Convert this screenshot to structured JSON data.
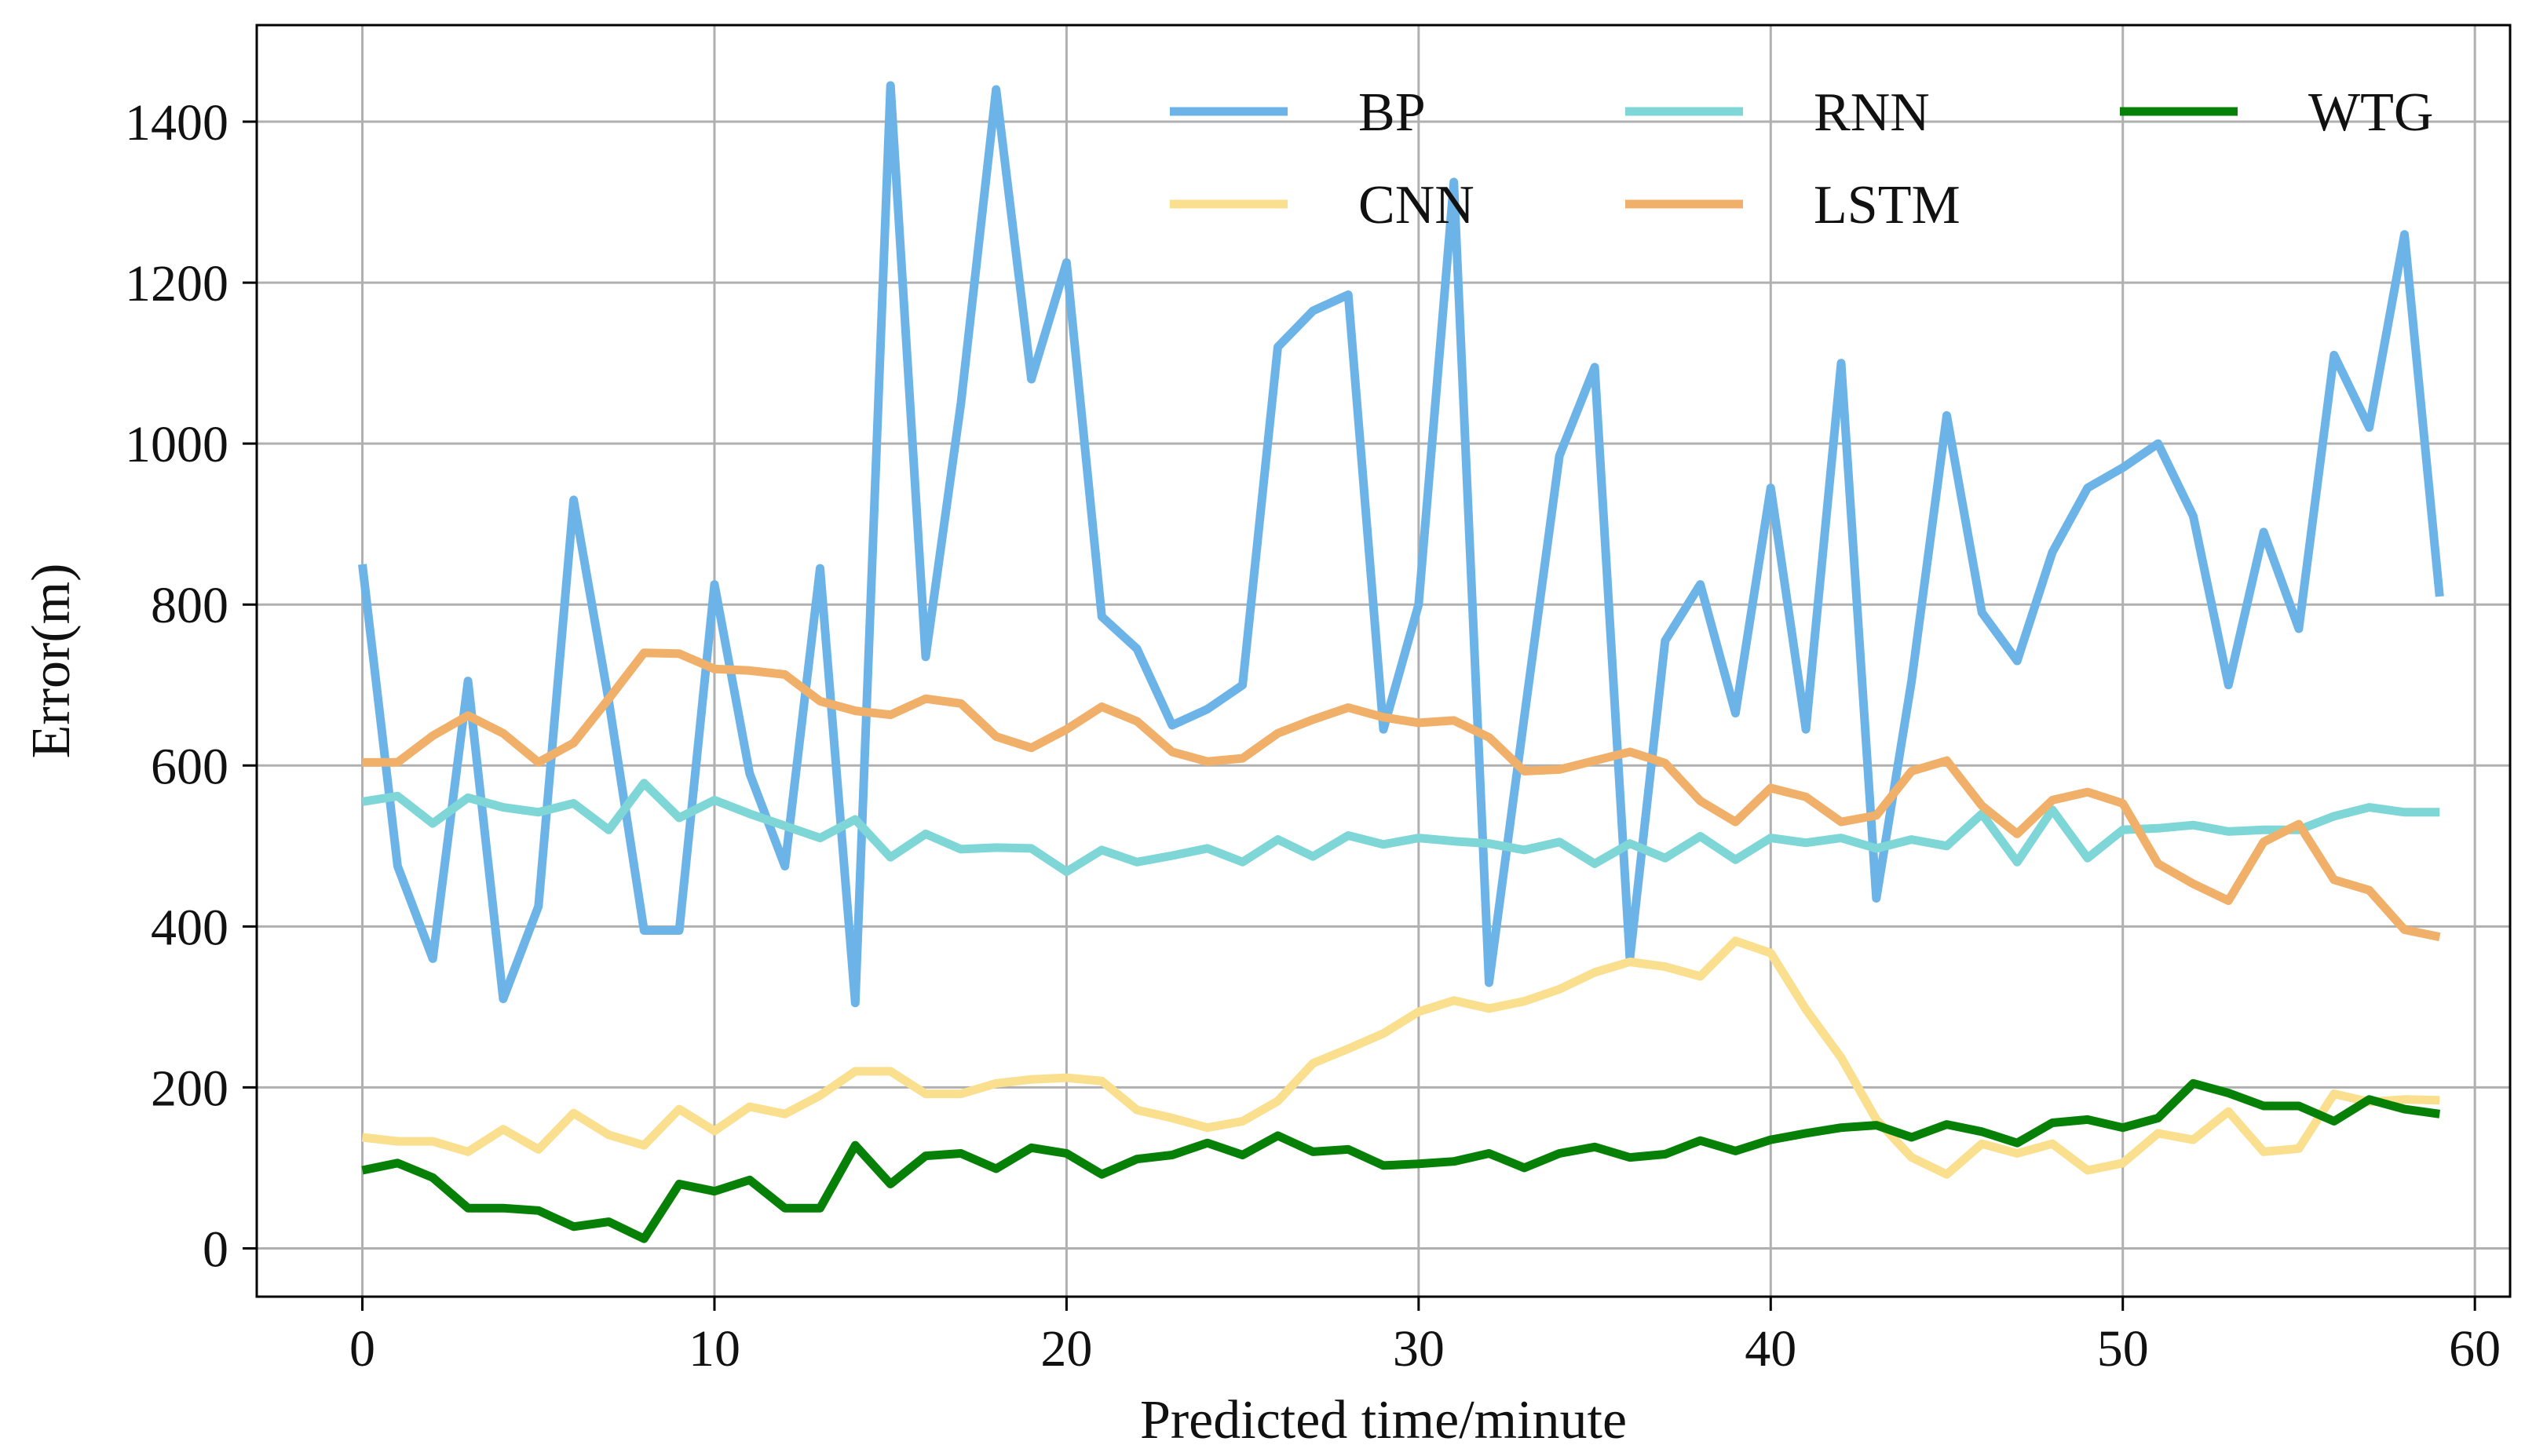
{
  "chart_data": {
    "type": "line",
    "title": "",
    "xlabel": "Predicted time/minute",
    "ylabel": "Error(m)",
    "xlim": [
      -3,
      61
    ],
    "ylim": [
      -60,
      1520
    ],
    "xticks": [
      0,
      10,
      20,
      30,
      40,
      50,
      60
    ],
    "yticks": [
      0,
      200,
      400,
      600,
      800,
      1000,
      1200,
      1400
    ],
    "xtick_labels": [
      "0",
      "10",
      "20",
      "30",
      "40",
      "50",
      "60"
    ],
    "ytick_labels": [
      "0",
      "200",
      "400",
      "600",
      "800",
      "1000",
      "1200",
      "1400"
    ],
    "grid": true,
    "legend_position": "top-right",
    "x": [
      0,
      1,
      2,
      3,
      4,
      5,
      6,
      7,
      8,
      9,
      10,
      11,
      12,
      13,
      14,
      15,
      16,
      17,
      18,
      19,
      20,
      21,
      22,
      23,
      24,
      25,
      26,
      27,
      28,
      29,
      30,
      31,
      32,
      33,
      34,
      35,
      36,
      37,
      38,
      39,
      40,
      41,
      42,
      43,
      44,
      45,
      46,
      47,
      48,
      49,
      50,
      51,
      52,
      53,
      54,
      55,
      56,
      57,
      58,
      59
    ],
    "series": [
      {
        "name": "BP",
        "color": "#6cb4e8",
        "values": [
          850,
          475,
          360,
          705,
          310,
          425,
          930,
          680,
          395,
          395,
          825,
          590,
          475,
          845,
          305,
          1445,
          735,
          1050,
          1440,
          1080,
          1225,
          785,
          745,
          650,
          670,
          700,
          1120,
          1165,
          1185,
          645,
          800,
          1325,
          330,
          660,
          985,
          1095,
          360,
          755,
          825,
          665,
          945,
          645,
          1100,
          435,
          705,
          1035,
          790,
          730,
          865,
          945,
          970,
          1000,
          910,
          700,
          890,
          770,
          1110,
          1020,
          1260,
          810
        ]
      },
      {
        "name": "CNN",
        "color": "#f9df8e",
        "values": [
          138,
          133,
          133,
          120,
          148,
          123,
          168,
          141,
          128,
          173,
          146,
          176,
          167,
          190,
          220,
          220,
          192,
          192,
          205,
          210,
          212,
          208,
          172,
          162,
          150,
          158,
          183,
          230,
          248,
          267,
          294,
          308,
          298,
          307,
          322,
          343,
          356,
          350,
          338,
          382,
          367,
          297,
          237,
          160,
          113,
          92,
          130,
          118,
          130,
          97,
          106,
          143,
          135,
          170,
          120,
          124,
          192,
          182,
          185,
          184
        ]
      },
      {
        "name": "RNN",
        "color": "#7fd6d6",
        "values": [
          555,
          562,
          528,
          560,
          548,
          542,
          553,
          520,
          578,
          535,
          557,
          540,
          525,
          510,
          533,
          486,
          515,
          496,
          498,
          497,
          468,
          495,
          480,
          488,
          497,
          480,
          508,
          487,
          513,
          502,
          510,
          506,
          503,
          495,
          505,
          478,
          503,
          485,
          512,
          483,
          510,
          504,
          510,
          497,
          508,
          500,
          540,
          480,
          545,
          485,
          520,
          522,
          526,
          518,
          520,
          520,
          537,
          548,
          542,
          542
        ]
      },
      {
        "name": "LSTM",
        "color": "#f0b06a",
        "values": [
          604,
          604,
          637,
          662,
          640,
          604,
          628,
          683,
          740,
          739,
          720,
          718,
          713,
          680,
          668,
          663,
          683,
          677,
          636,
          622,
          645,
          673,
          655,
          617,
          605,
          609,
          640,
          657,
          672,
          660,
          653,
          656,
          635,
          593,
          595,
          606,
          617,
          603,
          556,
          530,
          572,
          561,
          530,
          538,
          593,
          606,
          550,
          515,
          557,
          567,
          553,
          478,
          453,
          432,
          505,
          527,
          458,
          445,
          396,
          387
        ]
      },
      {
        "name": "WTG",
        "color": "#078007",
        "values": [
          97,
          106,
          88,
          50,
          50,
          47,
          27,
          33,
          12,
          80,
          71,
          85,
          50,
          50,
          128,
          80,
          115,
          118,
          99,
          125,
          118,
          92,
          111,
          116,
          131,
          116,
          140,
          120,
          123,
          103,
          105,
          108,
          118,
          100,
          118,
          126,
          113,
          117,
          134,
          121,
          135,
          143,
          150,
          153,
          138,
          154,
          145,
          131,
          156,
          160,
          150,
          162,
          205,
          193,
          177,
          177,
          158,
          185,
          173,
          167
        ]
      }
    ]
  }
}
